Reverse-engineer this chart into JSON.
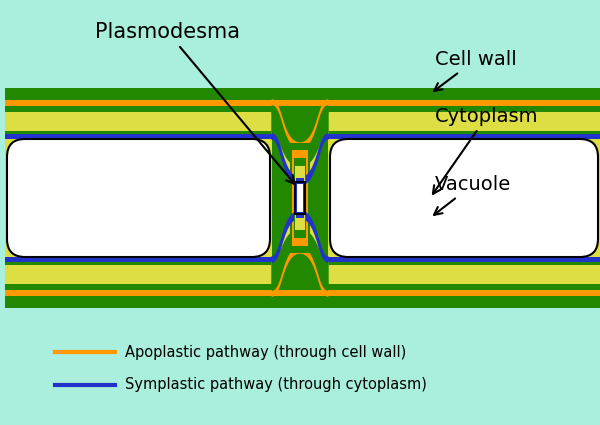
{
  "bg_color": "#aaeedd",
  "cell_wall_color": "#228800",
  "cytoplasm_color": "#dddd44",
  "vacuole_color": "#ffffff",
  "orange_color": "#ff9900",
  "blue_color": "#2233cc",
  "black_color": "#000000",
  "label_plasmodesma": "Plasmodesma",
  "label_cell_wall": "Cell wall",
  "label_cytoplasm": "Cytoplasm",
  "label_vacuole": "Vacuole",
  "legend_apoplastic": "Apoplastic pathway (through cell wall)",
  "legend_symplastic": "Symplastic pathway (through cytoplasm)",
  "fig_width": 6.0,
  "fig_height": 4.25,
  "dpi": 100
}
